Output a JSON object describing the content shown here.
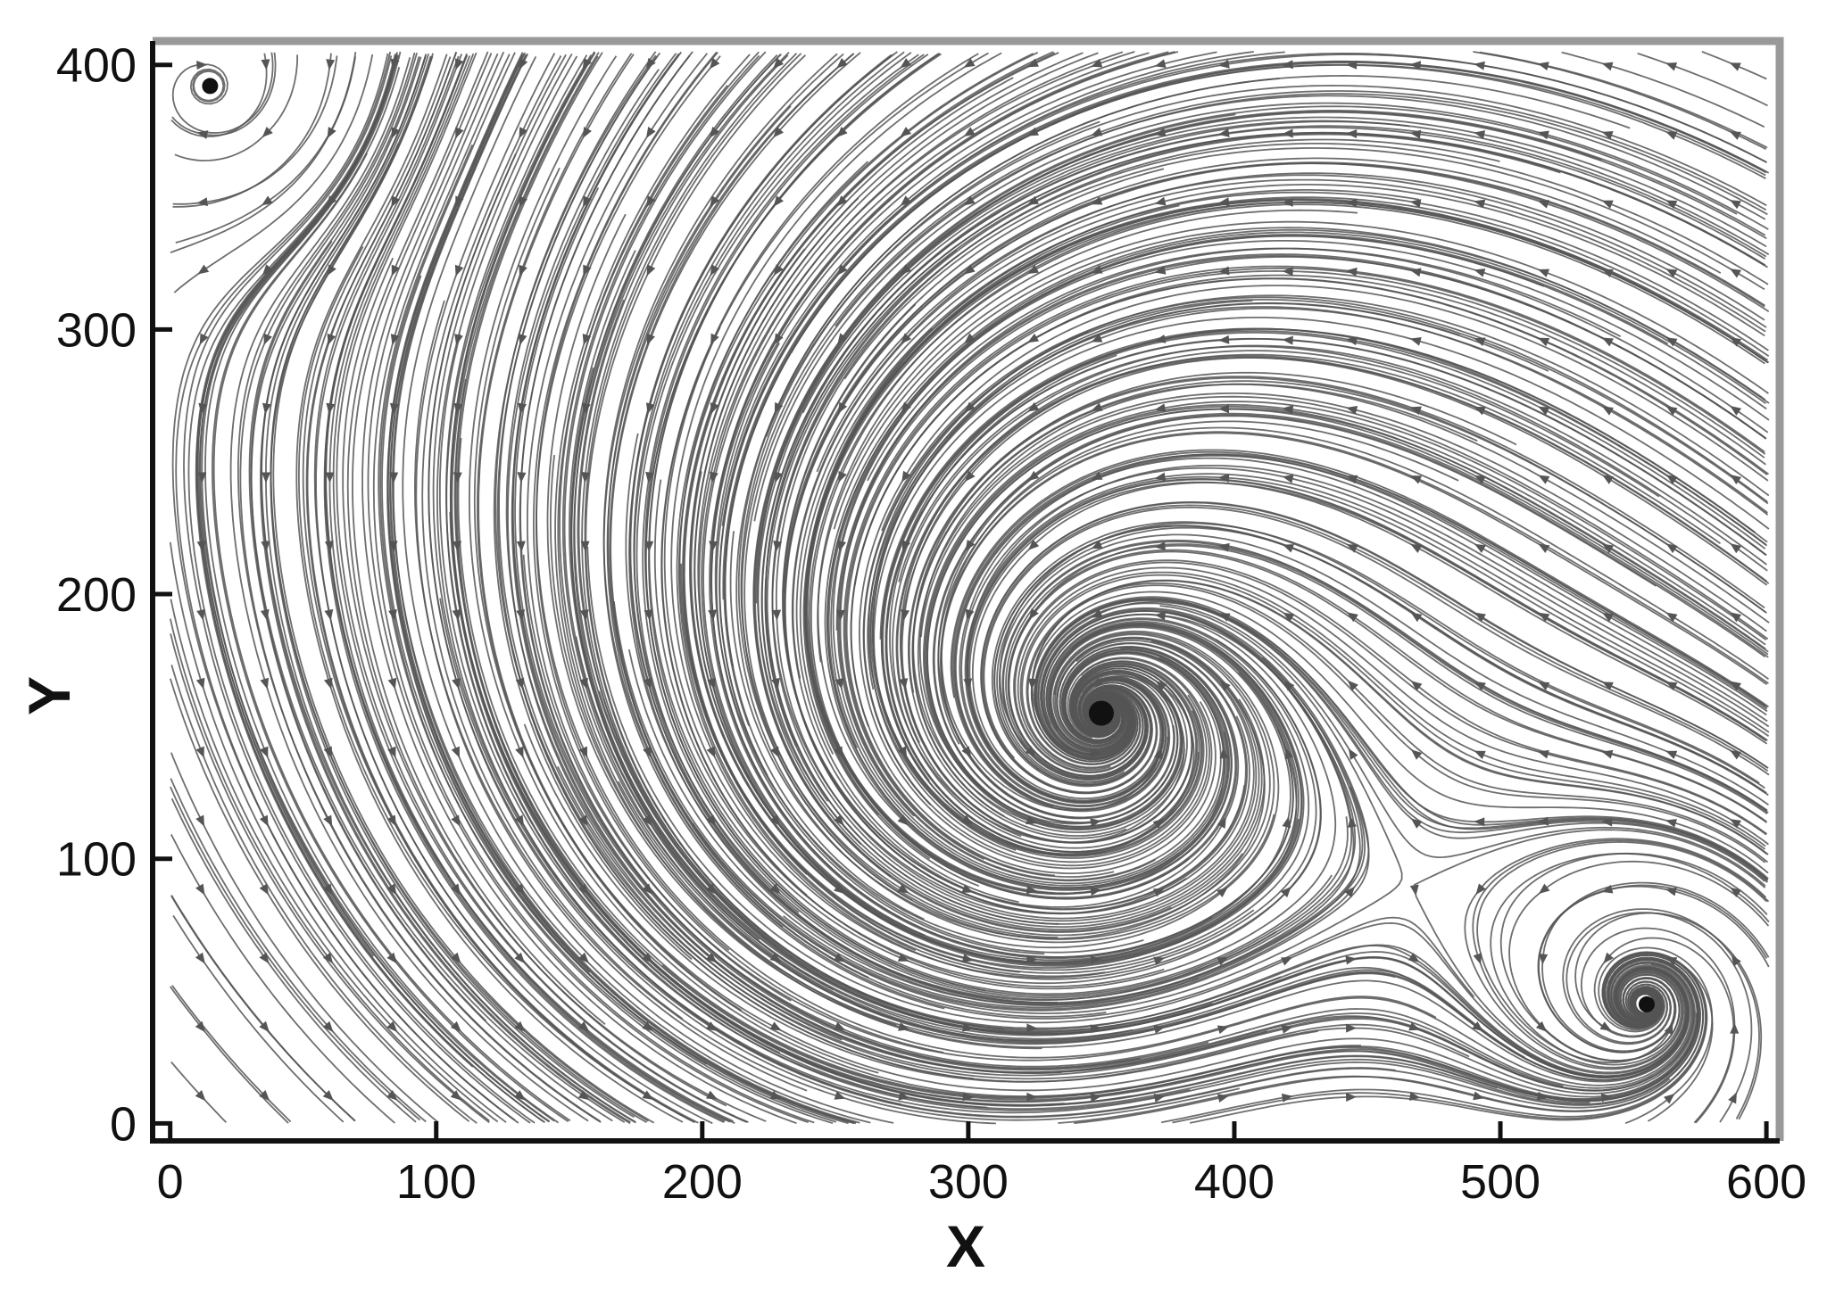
{
  "chart_data": {
    "type": "streamline",
    "xlabel": "X",
    "ylabel": "Y",
    "xlim": [
      -6.6,
      605
    ],
    "ylim": [
      -6.6,
      409
    ],
    "xticks": [
      0,
      100,
      200,
      300,
      400,
      500,
      600
    ],
    "yticks": [
      0,
      100,
      200,
      300,
      400
    ],
    "vortices": {
      "x": [
        350,
        555,
        15
      ],
      "y": [
        155,
        45,
        392
      ]
    },
    "color": "#555555"
  }
}
